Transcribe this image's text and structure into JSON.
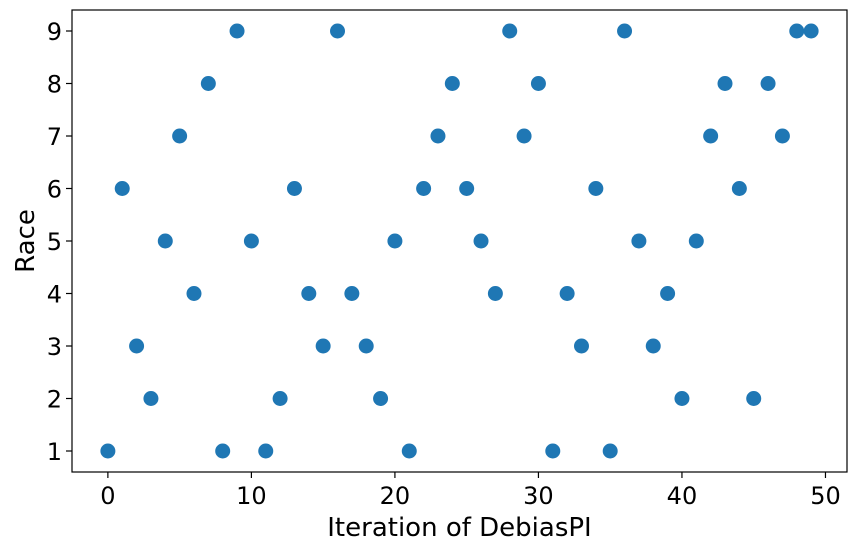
{
  "chart_data": {
    "type": "scatter",
    "title": "",
    "xlabel": "Iteration of DebiasPI",
    "ylabel": "Race",
    "xlim": [
      -2.5,
      51.5
    ],
    "ylim": [
      0.6,
      9.4
    ],
    "xticks": [
      0,
      10,
      20,
      30,
      40,
      50
    ],
    "yticks": [
      1,
      2,
      3,
      4,
      5,
      6,
      7,
      8,
      9
    ],
    "grid": false,
    "marker_color": "#1f77b4",
    "series": [
      {
        "x": [
          0,
          1,
          2,
          3,
          4,
          5,
          6,
          7,
          8,
          9,
          10,
          11,
          12,
          13,
          14,
          15,
          16,
          17,
          18,
          19,
          20,
          21,
          22,
          23,
          24,
          25,
          26,
          27,
          28,
          29,
          30,
          31,
          32,
          33,
          34,
          35,
          36,
          37,
          38,
          39,
          40,
          41,
          42,
          43,
          44,
          45,
          46,
          47,
          48,
          49
        ],
        "y": [
          1,
          6,
          3,
          2,
          5,
          7,
          4,
          8,
          1,
          9,
          5,
          1,
          2,
          6,
          4,
          3,
          9,
          4,
          3,
          2,
          5,
          1,
          6,
          7,
          8,
          6,
          5,
          4,
          9,
          7,
          8,
          1,
          4,
          3,
          6,
          1,
          9,
          5,
          3,
          4,
          2,
          5,
          7,
          8,
          6,
          2,
          8,
          7,
          9,
          9
        ]
      }
    ]
  }
}
